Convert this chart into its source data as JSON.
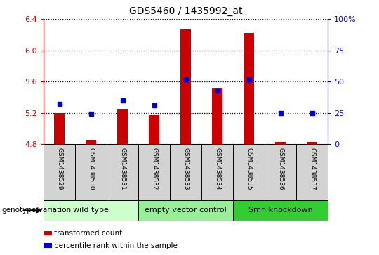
{
  "title": "GDS5460 / 1435992_at",
  "samples": [
    "GSM1438529",
    "GSM1438530",
    "GSM1438531",
    "GSM1438532",
    "GSM1438533",
    "GSM1438534",
    "GSM1438535",
    "GSM1438536",
    "GSM1438537"
  ],
  "transformed_count": [
    5.2,
    4.85,
    5.25,
    5.17,
    6.28,
    5.52,
    6.22,
    4.83,
    4.83
  ],
  "percentile_rank": [
    32,
    24,
    35,
    31,
    52,
    43,
    52,
    25,
    25
  ],
  "ylim": [
    4.8,
    6.4
  ],
  "yticks": [
    4.8,
    5.2,
    5.6,
    6.0,
    6.4
  ],
  "right_yticks": [
    0,
    25,
    50,
    75,
    100
  ],
  "right_ylim": [
    0,
    100
  ],
  "bar_color": "#cc0000",
  "dot_color": "#0000cc",
  "bar_width": 0.35,
  "groups": [
    {
      "label": "wild type",
      "indices": [
        0,
        1,
        2
      ],
      "color": "#ccffcc"
    },
    {
      "label": "empty vector control",
      "indices": [
        3,
        4,
        5
      ],
      "color": "#99ee99"
    },
    {
      "label": "Smn knockdown",
      "indices": [
        6,
        7,
        8
      ],
      "color": "#33cc33"
    }
  ],
  "group_row_label": "genotype/variation",
  "legend_items": [
    {
      "label": "transformed count",
      "color": "#cc0000"
    },
    {
      "label": "percentile rank within the sample",
      "color": "#0000cc"
    }
  ],
  "label_area_bg": "#d3d3d3",
  "dotted_color": "#000000",
  "baseline": 4.8
}
